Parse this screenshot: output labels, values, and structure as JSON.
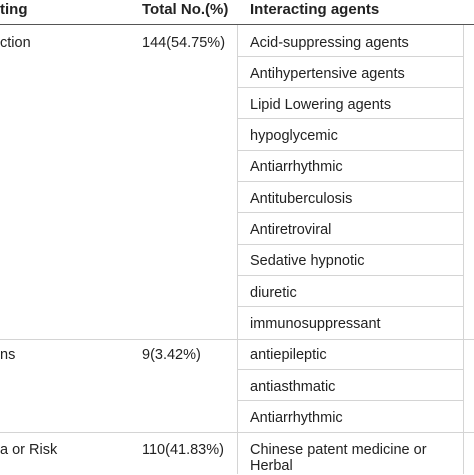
{
  "table": {
    "headers": {
      "col1": "ting",
      "col2": "Total No.(%)",
      "col3": "Interacting agents"
    },
    "groups": [
      {
        "label": "ction",
        "total": "144(54.75%)",
        "agents": [
          "Acid-suppressing agents",
          "Antihypertensive agents",
          "Lipid Lowering agents",
          "hypoglycemic",
          "Antiarrhythmic",
          "Antituberculosis",
          "Antiretroviral",
          "Sedative hypnotic",
          "diuretic",
          "immunosuppressant"
        ]
      },
      {
        "label": "ns",
        "total": "9(3.42%)",
        "agents": [
          "antiepileptic",
          "antiasthmatic",
          "Antiarrhythmic"
        ]
      },
      {
        "label": "a or Risk",
        "total": "110(41.83%)",
        "agents_lines": [
          "Chinese patent medicine or",
          "Herbal"
        ]
      }
    ]
  }
}
